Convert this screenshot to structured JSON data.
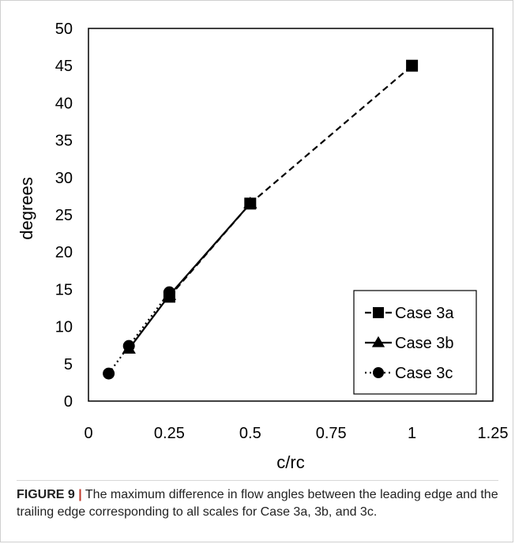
{
  "chart_data": {
    "type": "line",
    "xlabel": "c/rc",
    "ylabel": "degrees",
    "xlim": [
      0,
      1.25
    ],
    "ylim": [
      0,
      50
    ],
    "xticks": [
      "0",
      "0.25",
      "0.5",
      "0.75",
      "1",
      "1.25"
    ],
    "yticks": [
      "0",
      "5",
      "10",
      "15",
      "20",
      "25",
      "30",
      "35",
      "40",
      "45",
      "50"
    ],
    "legend_position": "bottom-right",
    "series": [
      {
        "name": "Case 3a",
        "marker": "square",
        "line": "dashed",
        "points": [
          [
            0.25,
            14.0
          ],
          [
            0.5,
            26.5
          ],
          [
            1.0,
            45.0
          ]
        ]
      },
      {
        "name": "Case 3b",
        "marker": "triangle",
        "line": "solid",
        "points": [
          [
            0.125,
            7.0
          ],
          [
            0.25,
            14.2
          ],
          [
            0.5,
            26.5
          ]
        ]
      },
      {
        "name": "Case 3c",
        "marker": "circle",
        "line": "dotted",
        "points": [
          [
            0.0625,
            3.7
          ],
          [
            0.125,
            7.4
          ],
          [
            0.25,
            14.6
          ]
        ]
      }
    ]
  },
  "caption": {
    "label": "FIGURE 9",
    "separator": "|",
    "text": "The maximum difference in flow angles between the leading edge and the trailing edge corresponding to all scales for Case 3a, 3b, and 3c."
  }
}
